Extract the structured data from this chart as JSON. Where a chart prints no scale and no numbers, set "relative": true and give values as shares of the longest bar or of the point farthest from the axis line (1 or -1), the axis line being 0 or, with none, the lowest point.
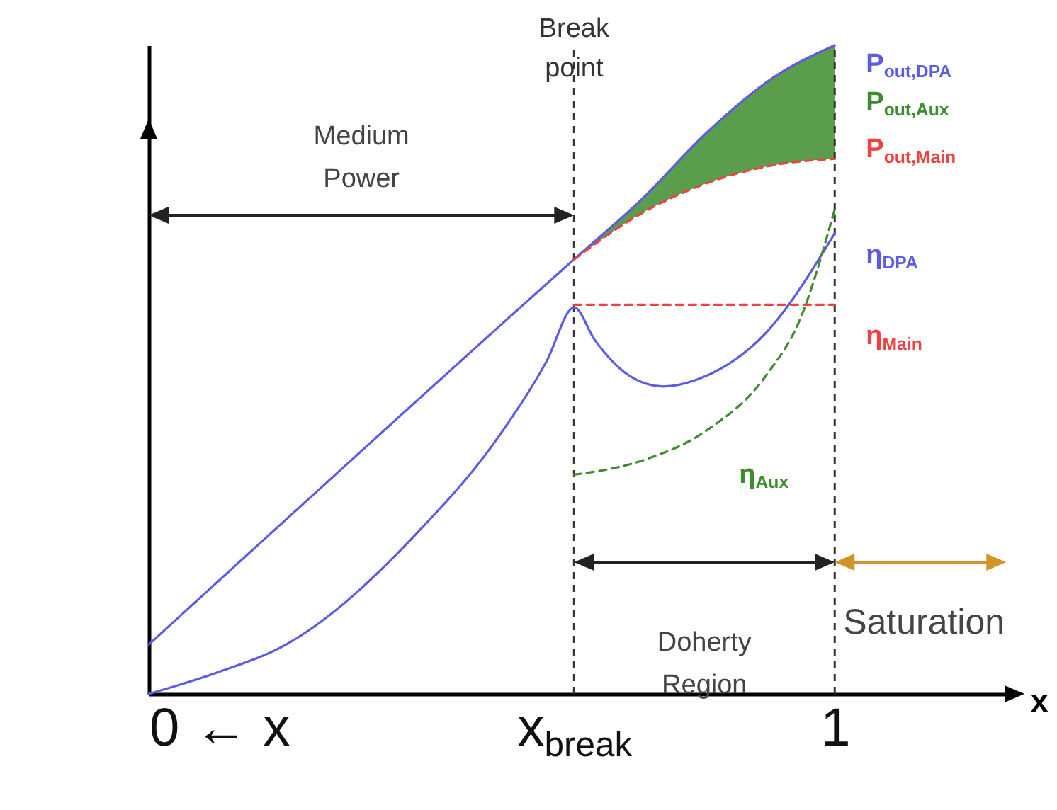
{
  "chart_data": {
    "type": "line",
    "relative": true,
    "xlabel": "x",
    "xlim": [
      0,
      1.26
    ],
    "xticks": [
      {
        "value": 0,
        "label": "0 ← x"
      },
      {
        "value": 0.62,
        "label": "x$_{break}$"
      },
      1
    ],
    "series": [
      {
        "name": "P$_{out,DPA}$",
        "color": "#5b5be6",
        "x": [
          0,
          0.62,
          0.72,
          0.81,
          0.91,
          1.0
        ],
        "values": [
          0.076,
          0.67,
          0.764,
          0.862,
          0.95,
          1.0
        ]
      },
      {
        "name": "P$_{out,Aux}$",
        "color": "#3d8c2e",
        "x": [
          0.62,
          0.72,
          0.81,
          0.91,
          1.0
        ],
        "values": [
          null,
          null,
          null,
          null,
          null
        ],
        "upper": [
          0.67,
          0.764,
          0.862,
          0.95,
          1.0
        ],
        "lower": [
          0.67,
          0.742,
          0.786,
          0.815,
          0.825
        ]
      },
      {
        "name": "P$_{out,Main}$",
        "color": "#f04040",
        "line_style": "dashed",
        "x": [
          0.62,
          0.72,
          0.81,
          0.91,
          1.0
        ],
        "values": [
          0.67,
          0.742,
          0.786,
          0.815,
          0.825
        ]
      },
      {
        "name": "η$_{DPA}$",
        "color": "#5b5be6",
        "x": [
          0,
          0.1,
          0.2,
          0.4,
          0.5,
          0.58,
          0.62,
          0.65,
          0.7,
          0.75,
          0.8,
          0.9,
          1.0
        ],
        "values": [
          0,
          0.033,
          0.076,
          0.258,
          0.382,
          0.513,
          0.596,
          0.546,
          0.491,
          0.474,
          0.485,
          0.557,
          0.71
        ]
      },
      {
        "name": "η$_{Main}$",
        "color": "#f04040",
        "line_style": "dashed",
        "x": [
          0.62,
          1.0
        ],
        "values": [
          0.6,
          0.6
        ]
      },
      {
        "name": "η$_{Aux}$",
        "color": "#3d8c2e",
        "line_style": "dashed",
        "x": [
          0.62,
          0.72,
          0.81,
          0.9,
          0.95,
          1.0
        ],
        "values": [
          0.338,
          0.36,
          0.404,
          0.491,
          0.579,
          0.747
        ]
      }
    ],
    "ref_lines": [
      {
        "axis": "x",
        "value": 0.62,
        "label": "Break point",
        "color": "#333333",
        "line_style": "dashed"
      },
      {
        "axis": "x",
        "value": 1,
        "color": "#333333",
        "line_style": "dashed"
      }
    ],
    "annotations": [
      "Medium Power",
      "Doherty Region",
      "Saturation"
    ]
  }
}
